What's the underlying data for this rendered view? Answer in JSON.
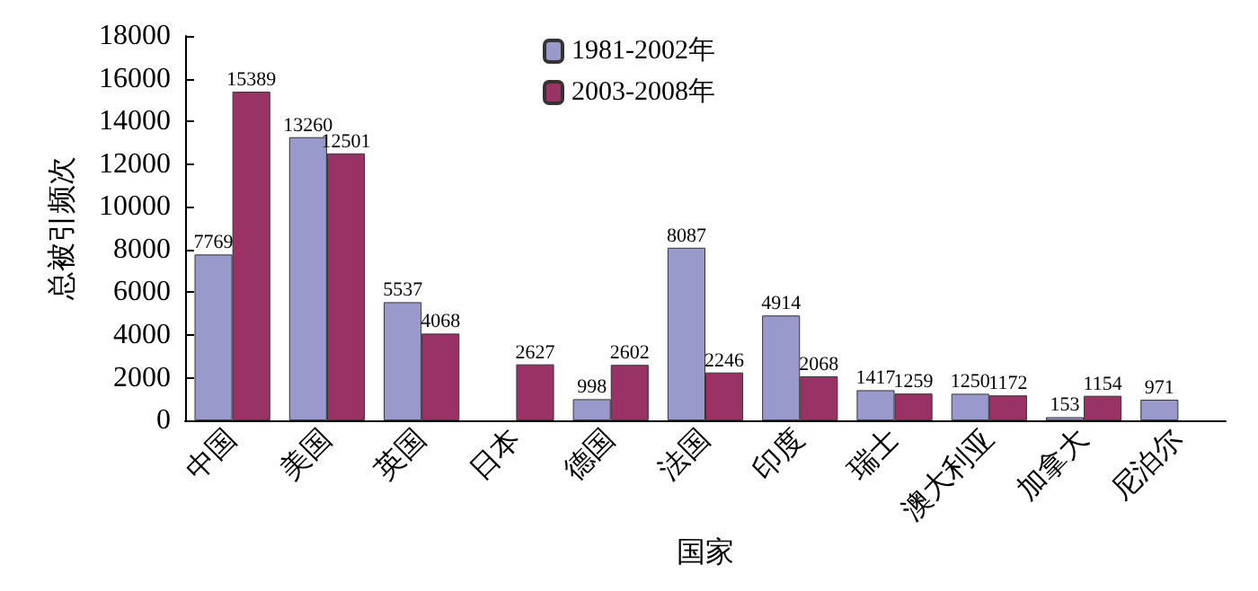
{
  "chart_data": {
    "type": "bar",
    "xlabel": "国家",
    "ylabel": "总被引频次",
    "categories": [
      "中国",
      "美国",
      "英国",
      "日本",
      "德国",
      "法国",
      "印度",
      "瑞士",
      "澳大利亚",
      "加拿大",
      "尼泊尔"
    ],
    "series": [
      {
        "name": "1981-2002年",
        "color": "#9999cc",
        "values": [
          7769,
          13260,
          5537,
          null,
          998,
          8087,
          4914,
          1417,
          1250,
          153,
          971
        ]
      },
      {
        "name": "2003-2008年",
        "color": "#993366",
        "values": [
          15389,
          12501,
          4068,
          2627,
          2602,
          2246,
          2068,
          1259,
          1172,
          1154,
          null
        ]
      }
    ],
    "ylim": [
      0,
      18000
    ],
    "yticks": [
      0,
      2000,
      4000,
      6000,
      8000,
      10000,
      12000,
      14000,
      16000,
      18000
    ],
    "grid": false,
    "legend": "top",
    "data_labels": true
  }
}
